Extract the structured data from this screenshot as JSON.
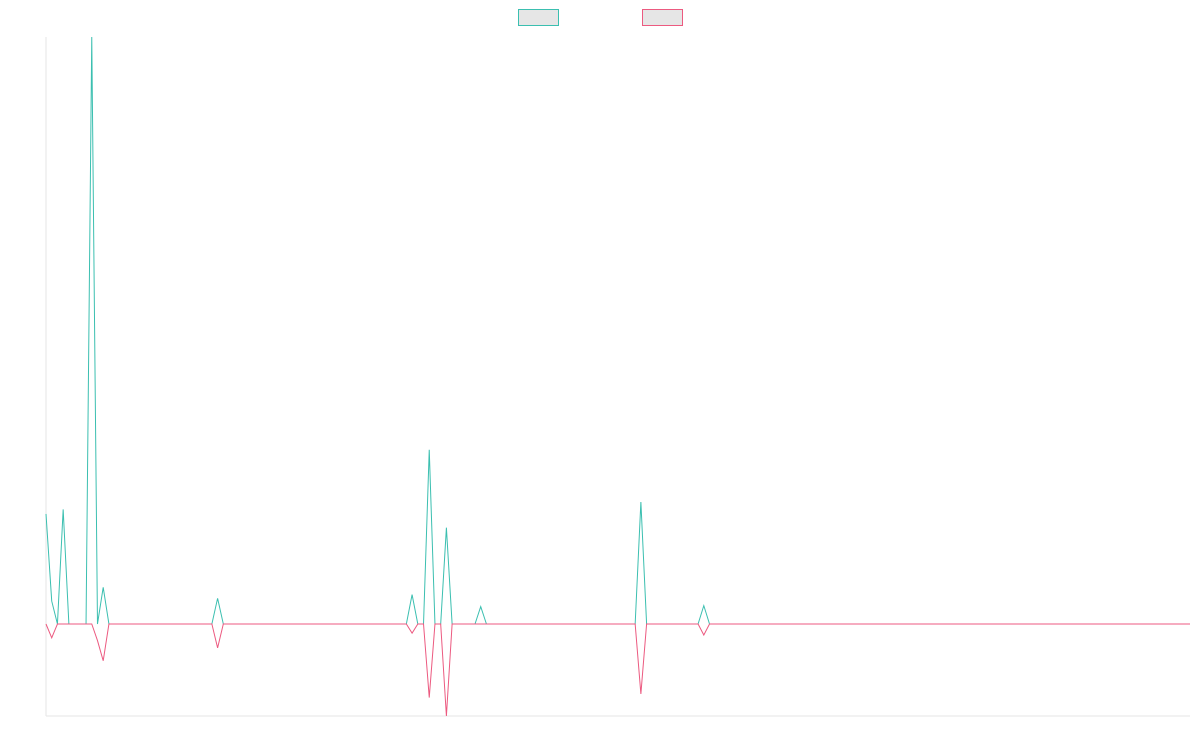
{
  "chart_data": {
    "type": "line",
    "title": "",
    "xlabel": "",
    "ylabel": "",
    "grid": false,
    "legend": "top-center",
    "ylim": [
      -100,
      640
    ],
    "x": [
      0,
      1,
      2,
      3,
      4,
      5,
      6,
      7,
      8,
      9,
      10,
      11,
      12,
      13,
      14,
      15,
      16,
      17,
      18,
      19,
      20,
      21,
      22,
      23,
      24,
      25,
      26,
      27,
      28,
      29,
      30,
      31,
      32,
      33,
      34,
      35,
      36,
      37,
      38,
      39,
      40,
      41,
      42,
      43,
      44,
      45,
      46,
      47,
      48,
      49,
      50,
      51,
      52,
      53,
      54,
      55,
      56,
      57,
      58,
      59,
      60,
      61,
      62,
      63,
      64,
      65,
      66,
      67,
      68,
      69,
      70,
      71,
      72,
      73,
      74,
      75,
      76,
      77,
      78,
      79,
      80,
      81,
      82,
      83,
      84,
      85,
      86,
      87,
      88,
      89,
      90,
      91,
      92,
      93,
      94,
      95,
      96,
      97,
      98,
      99,
      100,
      101,
      102,
      103,
      104,
      105,
      106,
      107,
      108,
      109,
      110,
      111,
      112,
      113,
      114,
      115,
      116,
      117,
      118,
      119,
      120,
      121,
      122,
      123,
      124,
      125,
      126,
      127,
      128,
      129,
      130,
      131,
      132,
      133,
      134,
      135,
      136,
      137,
      138,
      139,
      140,
      141,
      142,
      143,
      144,
      145,
      146,
      147,
      148,
      149,
      150,
      151,
      152,
      153,
      154,
      155,
      156,
      157,
      158,
      159,
      160,
      161,
      162,
      163,
      164,
      165,
      166,
      167,
      168,
      169,
      170,
      171,
      172,
      173,
      174,
      175,
      176,
      177,
      178,
      179,
      180,
      181,
      182,
      183,
      184,
      185,
      186,
      187,
      188,
      189,
      190,
      191,
      192,
      193,
      194,
      195,
      196,
      197,
      198,
      199,
      200
    ],
    "series": [
      {
        "name": "",
        "color": "#3bbfb0",
        "values": [
          120,
          25,
          0,
          125,
          0,
          0,
          0,
          0,
          640,
          0,
          40,
          0,
          0,
          0,
          0,
          0,
          0,
          0,
          0,
          0,
          0,
          0,
          0,
          0,
          0,
          0,
          0,
          0,
          0,
          0,
          28,
          0,
          0,
          0,
          0,
          0,
          0,
          0,
          0,
          0,
          0,
          0,
          0,
          0,
          0,
          0,
          0,
          0,
          0,
          0,
          0,
          0,
          0,
          0,
          0,
          0,
          0,
          0,
          0,
          0,
          0,
          0,
          0,
          0,
          32,
          0,
          0,
          190,
          0,
          0,
          105,
          0,
          0,
          0,
          0,
          0,
          19,
          0,
          0,
          0,
          0,
          0,
          0,
          0,
          0,
          0,
          0,
          0,
          0,
          0,
          0,
          0,
          0,
          0,
          0,
          0,
          0,
          0,
          0,
          0,
          0,
          0,
          0,
          0,
          133,
          0,
          0,
          0,
          0,
          0,
          0,
          0,
          0,
          0,
          0,
          20,
          0,
          0,
          0,
          0,
          0,
          0,
          0,
          0,
          0,
          0,
          0,
          0,
          0,
          0,
          0,
          0,
          0,
          0,
          0,
          0,
          0,
          0,
          0,
          0,
          0,
          0,
          0,
          0,
          0,
          0,
          0,
          0,
          0,
          0,
          0,
          0,
          0,
          0,
          0,
          0,
          0,
          0,
          0,
          0,
          0,
          0,
          0,
          0,
          0,
          0,
          0,
          0,
          0,
          0,
          0,
          0,
          0,
          0,
          0,
          0,
          0,
          0,
          0,
          0,
          0,
          0,
          0,
          0,
          0,
          0,
          0,
          0,
          0,
          0,
          0,
          0,
          0,
          0,
          0,
          0,
          0,
          0,
          0,
          0,
          0
        ]
      },
      {
        "name": "",
        "color": "#ec5a80",
        "values": [
          0,
          -15,
          0,
          0,
          0,
          0,
          0,
          0,
          0,
          -18,
          -40,
          0,
          0,
          0,
          0,
          0,
          0,
          0,
          0,
          0,
          0,
          0,
          0,
          0,
          0,
          0,
          0,
          0,
          0,
          0,
          -26,
          0,
          0,
          0,
          0,
          0,
          0,
          0,
          0,
          0,
          0,
          0,
          0,
          0,
          0,
          0,
          0,
          0,
          0,
          0,
          0,
          0,
          0,
          0,
          0,
          0,
          0,
          0,
          0,
          0,
          0,
          0,
          0,
          0,
          -10,
          0,
          0,
          -80,
          0,
          0,
          -100,
          0,
          0,
          0,
          0,
          0,
          0,
          0,
          0,
          0,
          0,
          0,
          0,
          0,
          0,
          0,
          0,
          0,
          0,
          0,
          0,
          0,
          0,
          0,
          0,
          0,
          0,
          0,
          0,
          0,
          0,
          0,
          0,
          0,
          -76,
          0,
          0,
          0,
          0,
          0,
          0,
          0,
          0,
          0,
          0,
          -12,
          0,
          0,
          0,
          0,
          0,
          0,
          0,
          0,
          0,
          0,
          0,
          0,
          0,
          0,
          0,
          0,
          0,
          0,
          0,
          0,
          0,
          0,
          0,
          0,
          0,
          0,
          0,
          0,
          0,
          0,
          0,
          0,
          0,
          0,
          0,
          0,
          0,
          0,
          0,
          0,
          0,
          0,
          0,
          0,
          0,
          0,
          0,
          0,
          0,
          0,
          0,
          0,
          0,
          0,
          0,
          0,
          0,
          0,
          0,
          0,
          0,
          0,
          0,
          0,
          0,
          0,
          0,
          0,
          0,
          0,
          0,
          0,
          0,
          0,
          0,
          0,
          0,
          0,
          0,
          0,
          0,
          0,
          0,
          0,
          0
        ]
      }
    ]
  }
}
